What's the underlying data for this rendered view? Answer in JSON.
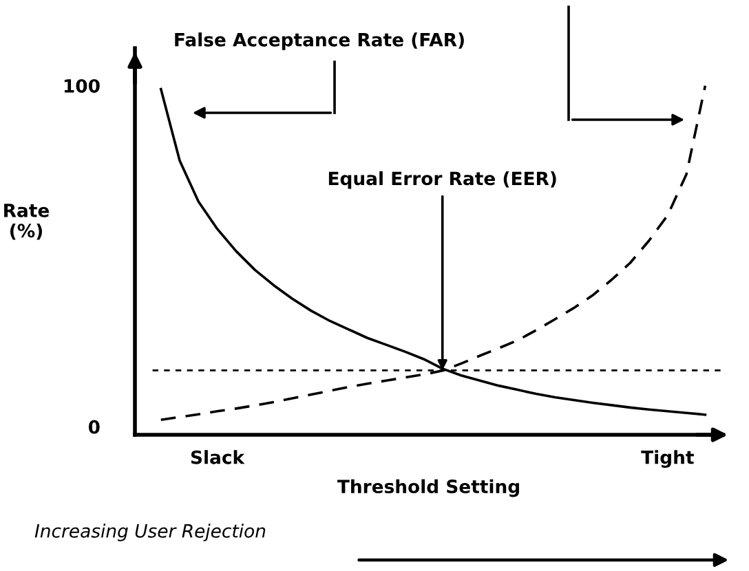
{
  "chart_data": {
    "type": "line",
    "xlabel": "Threshold Setting",
    "ylabel": "Rate\n(%)",
    "categories": [
      null,
      null,
      null,
      null,
      "Slack",
      null,
      null,
      null,
      null,
      null,
      null,
      null,
      null,
      null,
      null,
      null,
      null,
      null,
      null,
      null,
      null,
      null,
      null,
      null,
      null,
      null,
      null,
      null,
      "Tight",
      null,
      null
    ],
    "ylim": [
      -2.4,
      111
    ],
    "yticks": [
      0,
      100
    ],
    "series": [
      {
        "name": "False Acceptance Rate (FAR)",
        "color": "#000000",
        "line_style": "solid",
        "values": [
          null,
          99,
          78,
          66,
          58,
          51.5,
          46,
          41.5,
          37.5,
          34,
          31,
          28.5,
          26,
          24,
          22,
          19.8,
          17,
          15,
          13.5,
          12,
          10.8,
          9.6,
          8.6,
          7.8,
          7,
          6.3,
          5.6,
          5,
          4.5,
          4,
          3.5
        ]
      },
      {
        "color": "#000000",
        "line_style": "dashed",
        "values": [
          null,
          2.0,
          2.8,
          3.6,
          4.5,
          5.3,
          6.2,
          7.2,
          8.3,
          9.4,
          10.5,
          11.6,
          12.6,
          13.5,
          14.4,
          15.3,
          16.4,
          18.5,
          20.8,
          23,
          25.3,
          28.3,
          31.5,
          34.8,
          38.5,
          43,
          48,
          54.5,
          62,
          74,
          100
        ]
      }
    ],
    "ref_lines": [
      {
        "axis": "y",
        "value": 16.5,
        "line_style": "dotted",
        "color": "#000000"
      }
    ],
    "annotations": [
      {
        "text": "Equal Error Rate (EER)",
        "y": 16.5
      },
      "Increasing User Rejection"
    ],
    "grid": false,
    "legend": false,
    "marker": "none"
  }
}
